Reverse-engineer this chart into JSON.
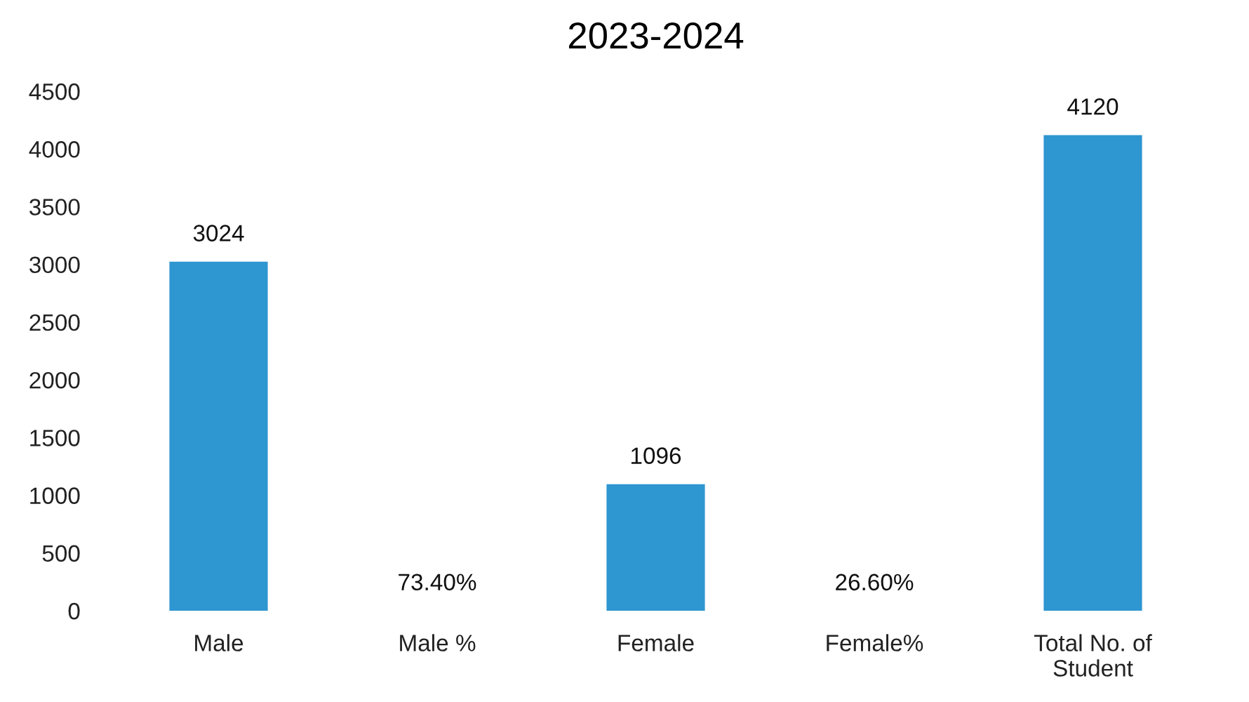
{
  "chart_data": {
    "type": "bar",
    "title": "2023-2024",
    "categories": [
      "Male",
      "Male %",
      "Female",
      "Female%",
      "Total No. of\nStudent"
    ],
    "values": [
      3024,
      0.734,
      1096,
      0.266,
      4120
    ],
    "value_labels": [
      "3024",
      "73.40%",
      "1096",
      "26.60%",
      "4120"
    ],
    "color": "#2e96d0",
    "ylim": [
      0,
      4500
    ],
    "yticks": [
      0,
      500,
      1000,
      1500,
      2000,
      2500,
      3000,
      3500,
      4000,
      4500
    ]
  }
}
